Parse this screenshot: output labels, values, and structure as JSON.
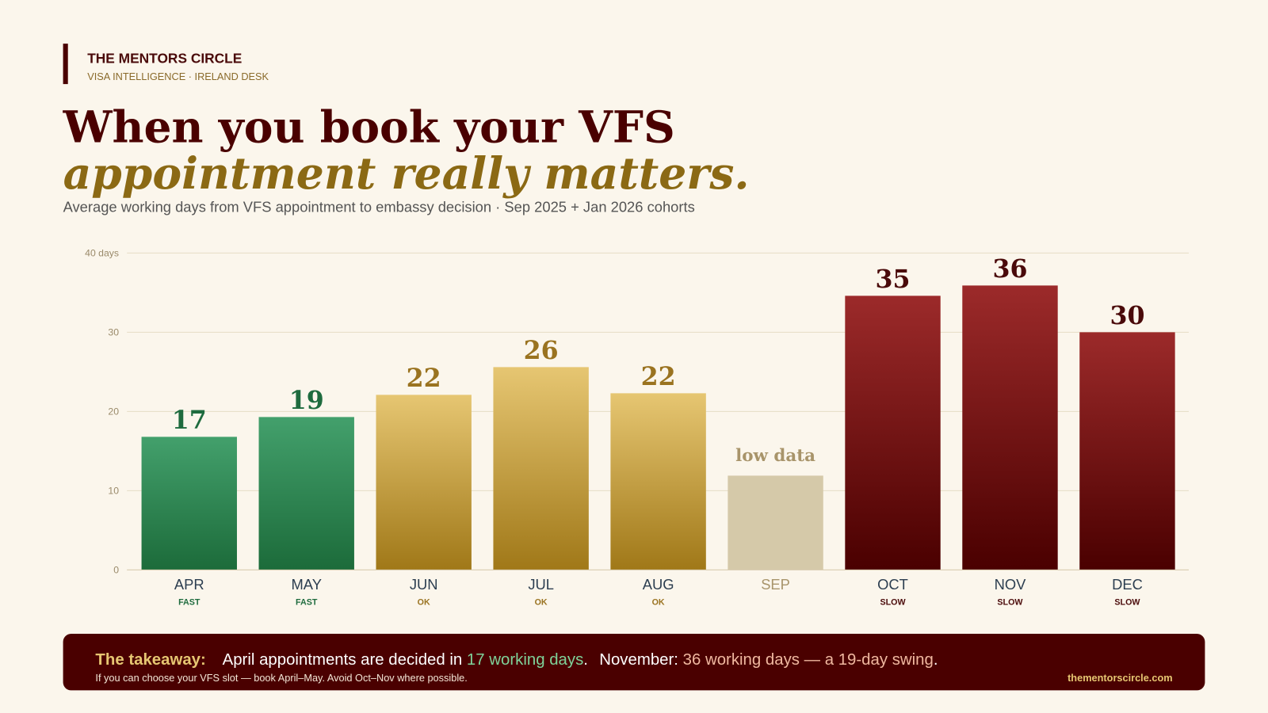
{
  "brand": {
    "name": "THE MENTORS CIRCLE",
    "desk": "VISA INTELLIGENCE · IRELAND DESK"
  },
  "chart_data": {
    "type": "bar",
    "title": "When you book your VFS",
    "title_emphasis": "appointment really matters.",
    "subtitle": "Average working days from VFS appointment to embassy decision · Sep 2025 + Jan 2026 cohorts",
    "categories": [
      "APR",
      "MAY",
      "JUN",
      "JUL",
      "AUG",
      "SEP",
      "OCT",
      "NOV",
      "DEC"
    ],
    "values": [
      16.8,
      19.3,
      22.1,
      25.6,
      22.3,
      11.9,
      34.6,
      35.9,
      30
    ],
    "value_labels": [
      "17",
      "19",
      "22",
      "26",
      "22",
      "low data",
      "35",
      "36",
      "30"
    ],
    "speed_labels": [
      "FAST",
      "FAST",
      "OK",
      "OK",
      "OK",
      null,
      "SLOW",
      "SLOW",
      "SLOW"
    ],
    "colors": [
      [
        "#43a06c",
        "#1c6b3a"
      ],
      [
        "#43a06c",
        "#1c6b3a"
      ],
      [
        "#e6c672",
        "#a07818"
      ],
      [
        "#e6c672",
        "#a07818"
      ],
      [
        "#e6c672",
        "#a07818"
      ],
      [
        "#d5c9a9",
        "#d5c9a9"
      ],
      [
        "#9c2a2a",
        "#4a0000"
      ],
      [
        "#9c2a2a",
        "#4a0000"
      ],
      [
        "#9c2a2a",
        "#4a0000"
      ]
    ],
    "label_colors": [
      "#1e6b3e",
      "#1e6b3e",
      "#9a7320",
      "#9a7320",
      "#9a7320",
      "#a8946a",
      "#4a0a0a",
      "#4a0a0a",
      "#4a0a0a"
    ],
    "ylim": [
      0,
      40
    ],
    "yticks": [
      0,
      10,
      20,
      30,
      {
        "value": 40,
        "label": "40 days"
      }
    ],
    "grid": true
  },
  "takeaway": {
    "label": "The takeaway:",
    "parts": [
      "April appointments are decided in ",
      "17 working days",
      ".",
      "November: ",
      "36 working days — a 19-day swing",
      "."
    ],
    "note": "If you can choose your VFS slot — book April–May. Avoid Oct–Nov where possible.",
    "site": "thementorscircle.com"
  }
}
